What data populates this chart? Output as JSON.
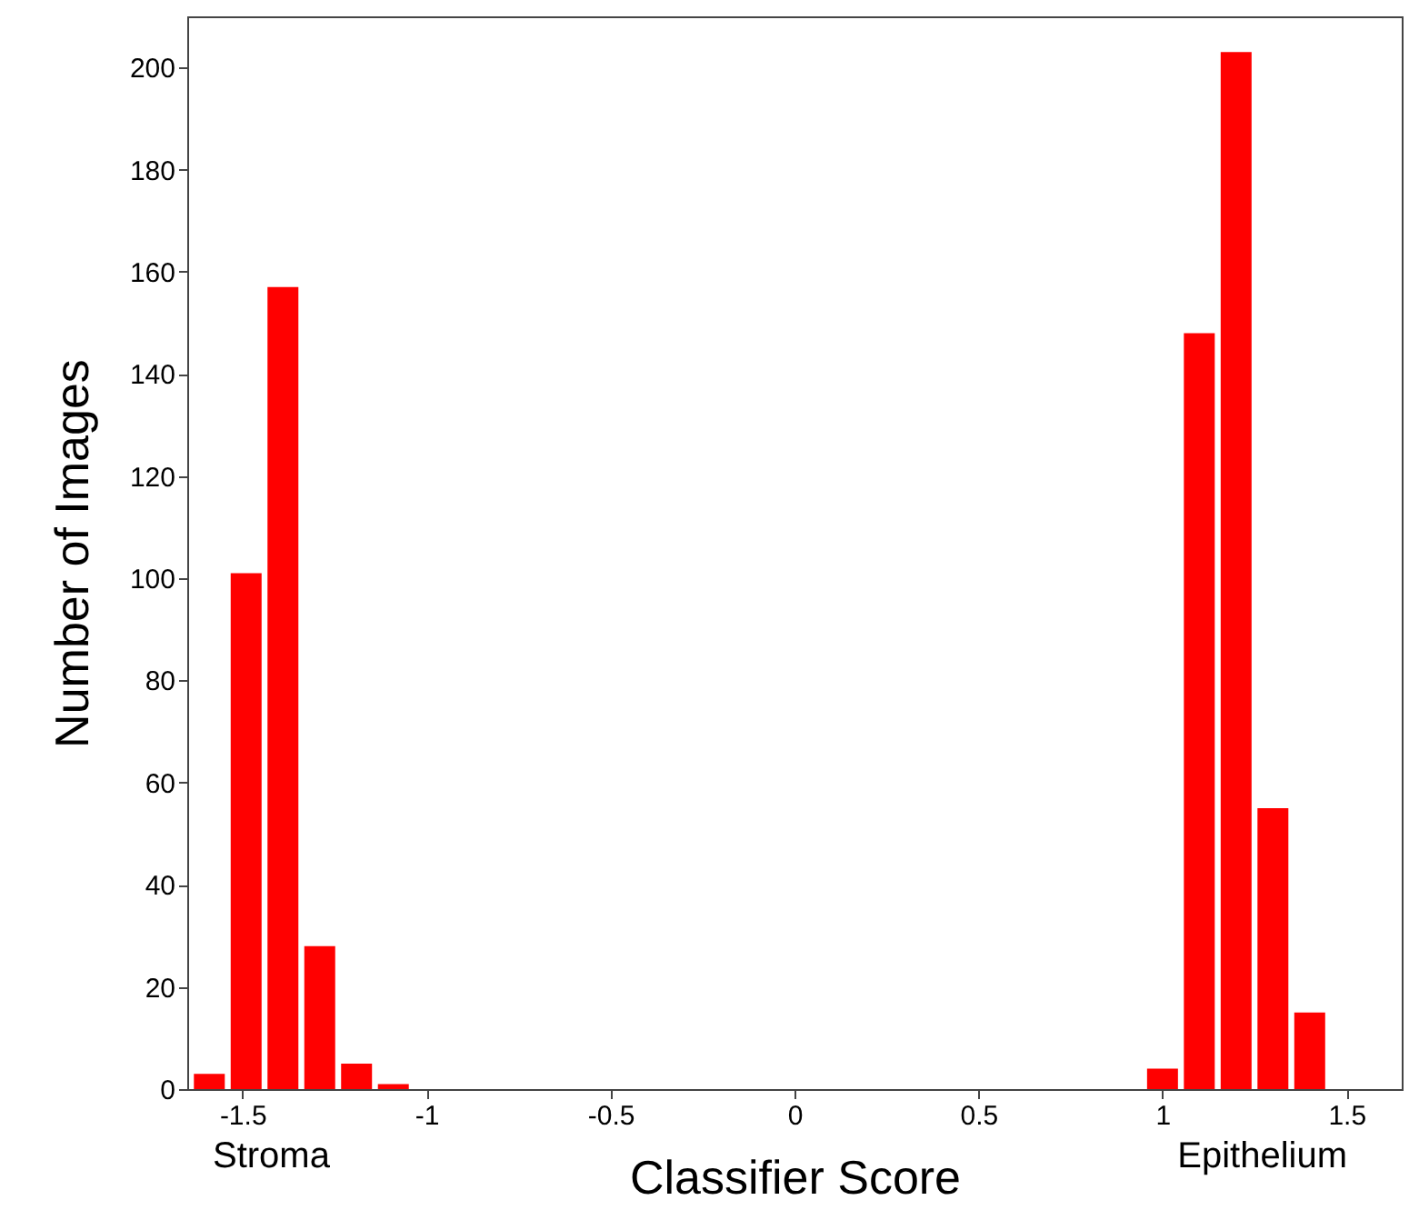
{
  "chart_data": {
    "type": "bar",
    "xlabel": "Classifier Score",
    "ylabel": "Number of Images",
    "x": [
      -1.59,
      -1.49,
      -1.39,
      -1.29,
      -1.19,
      -1.09,
      1.0,
      1.1,
      1.2,
      1.3,
      1.4
    ],
    "values": [
      3,
      101,
      157,
      28,
      5,
      1,
      4,
      148,
      203,
      55,
      15
    ],
    "color": "#ff0000",
    "xlim": [
      -1.65,
      1.65
    ],
    "xticks": [
      -1.5,
      -1,
      -0.5,
      0,
      0.5,
      1,
      1.5
    ],
    "ylim": [
      0,
      210
    ],
    "yticks": [
      0,
      20,
      40,
      60,
      80,
      100,
      120,
      140,
      160,
      180,
      200
    ],
    "grid": false,
    "annotations": [
      "Stroma",
      "Epithelium"
    ]
  }
}
